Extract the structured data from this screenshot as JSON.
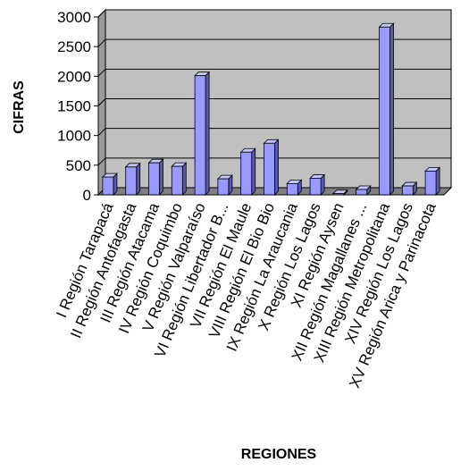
{
  "chart_data": {
    "type": "bar",
    "title": "",
    "xlabel": "REGIONES",
    "ylabel": "CIFRAS",
    "ylim": [
      0,
      3000
    ],
    "yticks": [
      0,
      500,
      1000,
      1500,
      2000,
      2500,
      3000
    ],
    "grid": true,
    "legend": "none",
    "categories": [
      "I Región Tarapacá",
      "II Región Antofagasta",
      "III Región Atacama",
      "IV Región Coquimbo",
      "V Región Valparaíso",
      "VI Región Libertador B...",
      "VII Región El Maule",
      "VIII Región El Bio Bio",
      "IX Región La Araucania",
      "X Región Los Lagos",
      "XI Región Aysen",
      "XII Región Magallanes ...",
      "XIII Región Metropolitana",
      "XIV Región Los Lagos",
      "XV Región Arica y Parinacota"
    ],
    "values": [
      300,
      470,
      540,
      480,
      2010,
      270,
      720,
      870,
      190,
      280,
      20,
      90,
      2830,
      150,
      400
    ],
    "colors": {
      "bar_front": "#9999ff",
      "bar_top": "#c6c6ff",
      "bar_side": "#5757b8",
      "plot_back": "#c0c0c0",
      "plot_floor": "#808080",
      "gridline": "#000000"
    }
  }
}
